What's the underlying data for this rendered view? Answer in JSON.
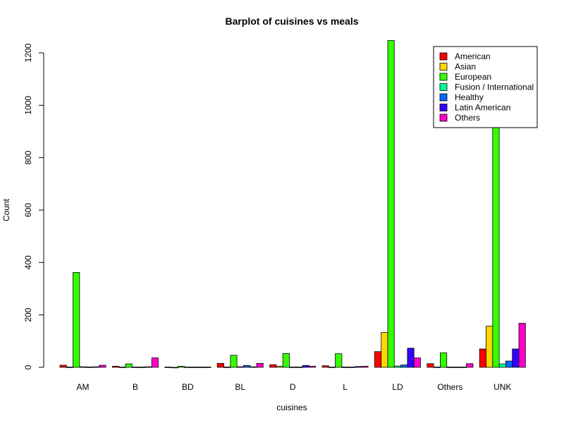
{
  "chart_data": {
    "type": "bar",
    "title": "Barplot of cuisines vs meals",
    "xlabel": "cuisines",
    "ylabel": "Count",
    "ylim": [
      0,
      1200
    ],
    "yticks": [
      0,
      200,
      400,
      600,
      800,
      1000,
      1200
    ],
    "grid": false,
    "legend_position": "top-right",
    "categories": [
      "AM",
      "B",
      "BD",
      "BL",
      "D",
      "L",
      "LD",
      "Others",
      "UNK"
    ],
    "series": [
      {
        "name": "American",
        "color": "#ff0000",
        "values": [
          8,
          4,
          1,
          15,
          10,
          6,
          60,
          14,
          70
        ]
      },
      {
        "name": "Asian",
        "color": "#ffd700",
        "values": [
          1,
          1,
          0,
          1,
          4,
          1,
          133,
          1,
          157
        ]
      },
      {
        "name": "European",
        "color": "#33ff00",
        "values": [
          362,
          13,
          4,
          46,
          53,
          52,
          1247,
          55,
          1080
        ]
      },
      {
        "name": "Fusion / International",
        "color": "#00ff99",
        "values": [
          2,
          1,
          1,
          2,
          1,
          1,
          5,
          1,
          13
        ]
      },
      {
        "name": "Healthy",
        "color": "#0066ff",
        "values": [
          1,
          1,
          1,
          7,
          1,
          1,
          9,
          1,
          24
        ]
      },
      {
        "name": "Latin American",
        "color": "#3300ff",
        "values": [
          2,
          2,
          1,
          2,
          7,
          3,
          73,
          1,
          70
        ]
      },
      {
        "name": "Others",
        "color": "#ff00cc",
        "values": [
          8,
          36,
          1,
          15,
          4,
          4,
          36,
          14,
          168
        ]
      }
    ]
  }
}
